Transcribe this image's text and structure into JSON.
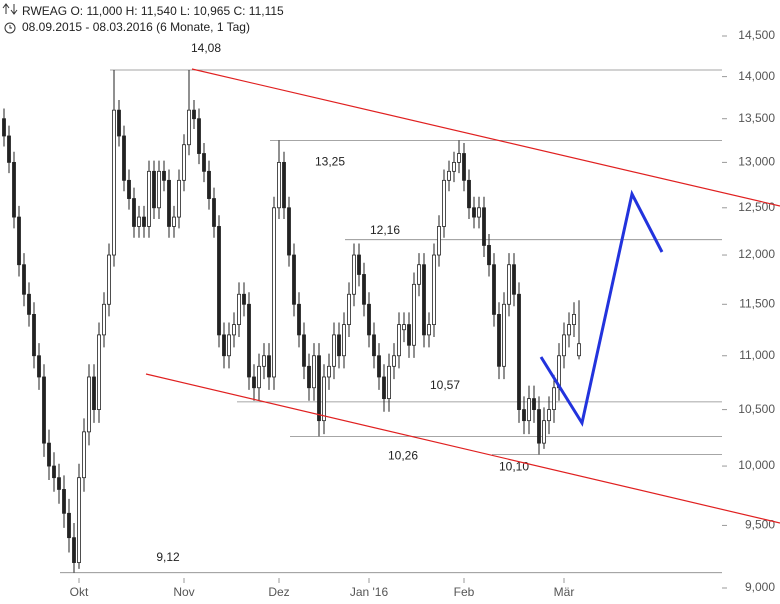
{
  "chart_data": {
    "type": "candlestick",
    "title": "RWEAG  O: 11,000  H: 11,540  L: 10,965  C: 11,115",
    "subtitle": "08.09.2015 - 08.03.2016 (6 Monate, 1 Tag)",
    "log_scale": true,
    "categories": [
      null,
      null,
      null,
      null,
      null,
      null,
      null,
      null,
      null,
      null,
      null,
      null,
      null,
      null,
      null,
      "Okt",
      null,
      null,
      null,
      null,
      null,
      null,
      null,
      null,
      null,
      null,
      null,
      null,
      null,
      null,
      null,
      null,
      null,
      null,
      null,
      null,
      "Nov",
      null,
      null,
      null,
      null,
      null,
      null,
      null,
      null,
      null,
      null,
      null,
      null,
      null,
      null,
      null,
      null,
      null,
      null,
      "Dez",
      null,
      null,
      null,
      null,
      null,
      null,
      null,
      null,
      null,
      null,
      null,
      null,
      null,
      null,
      null,
      null,
      null,
      "Jan '16",
      null,
      null,
      null,
      null,
      null,
      null,
      null,
      null,
      null,
      null,
      null,
      null,
      null,
      null,
      null,
      null,
      null,
      null,
      "Feb",
      null,
      null,
      null,
      null,
      null,
      null,
      null,
      null,
      null,
      null,
      null,
      null,
      null,
      null,
      null,
      null,
      null,
      null,
      null,
      "Mär",
      null,
      null,
      null
    ],
    "series": [
      {
        "name": "RWEAG",
        "color": "#222222",
        "open": [
          13.5,
          13.3,
          13.0,
          12.4,
          11.9,
          11.6,
          11.4,
          11.0,
          10.8,
          10.2,
          10.0,
          9.9,
          9.8,
          9.6,
          9.4,
          9.2,
          9.9,
          10.3,
          10.8,
          10.5,
          11.2,
          11.5,
          12.0,
          13.6,
          13.3,
          12.8,
          12.6,
          12.3,
          12.4,
          12.3,
          12.9,
          12.5,
          12.9,
          12.8,
          12.3,
          12.4,
          12.8,
          13.2,
          13.6,
          13.5,
          13.1,
          12.9,
          12.6,
          12.3,
          11.2,
          11.0,
          11.2,
          11.3,
          11.6,
          11.5,
          10.8,
          10.7,
          10.9,
          11.0,
          10.8,
          12.5,
          13.0,
          12.5,
          12.0,
          11.5,
          11.2,
          10.9,
          10.7,
          11.0,
          10.4,
          10.8,
          10.9,
          11.2,
          11.0,
          11.3,
          11.6,
          12.0,
          11.8,
          11.5,
          11.2,
          11.0,
          10.8,
          10.6,
          10.9,
          11.0,
          11.25,
          11.3,
          11.1,
          11.7,
          11.9,
          11.2,
          11.3,
          12.0,
          12.3,
          12.8,
          12.9,
          13.0,
          13.1,
          12.8,
          12.5,
          12.4,
          12.5,
          12.1,
          11.9,
          11.4,
          10.9,
          11.5,
          11.9,
          11.6,
          10.5,
          10.4,
          10.6,
          10.5,
          10.2,
          10.4,
          10.5,
          10.7,
          11.0,
          11.2,
          11.3,
          11.0
        ],
        "high": [
          13.62,
          13.42,
          13.12,
          12.52,
          12.02,
          11.72,
          11.52,
          11.12,
          10.92,
          10.32,
          10.12,
          10.02,
          9.92,
          9.72,
          9.52,
          10.02,
          10.42,
          10.92,
          10.92,
          11.32,
          11.62,
          12.12,
          14.08,
          13.72,
          13.42,
          12.92,
          12.72,
          12.52,
          12.52,
          13.02,
          13.02,
          13.02,
          13.02,
          12.92,
          12.52,
          12.92,
          13.32,
          14.08,
          13.72,
          13.62,
          13.22,
          13.02,
          12.72,
          12.42,
          11.32,
          11.32,
          11.42,
          11.72,
          11.72,
          11.62,
          10.92,
          11.02,
          11.12,
          11.12,
          12.62,
          13.25,
          13.12,
          12.62,
          12.12,
          11.62,
          11.32,
          11.02,
          11.12,
          11.12,
          10.92,
          11.02,
          11.32,
          11.32,
          11.42,
          11.72,
          12.12,
          12.12,
          11.92,
          11.62,
          11.32,
          11.12,
          10.92,
          11.02,
          11.12,
          11.42,
          11.42,
          11.42,
          11.82,
          12.02,
          12.02,
          11.42,
          12.12,
          12.42,
          12.92,
          13.02,
          13.12,
          13.25,
          13.22,
          12.92,
          12.62,
          12.62,
          12.62,
          12.22,
          12.02,
          11.52,
          11.62,
          12.02,
          12.02,
          11.72,
          10.62,
          10.72,
          10.72,
          10.62,
          10.52,
          10.62,
          10.82,
          11.12,
          11.32,
          11.42,
          11.52,
          11.54
        ],
        "low": [
          13.18,
          12.88,
          12.28,
          11.78,
          11.48,
          11.28,
          10.88,
          10.68,
          10.08,
          9.88,
          9.78,
          9.68,
          9.48,
          9.28,
          9.12,
          9.15,
          9.78,
          10.18,
          10.38,
          10.38,
          11.08,
          11.38,
          11.88,
          13.18,
          12.68,
          12.48,
          12.18,
          12.18,
          12.18,
          12.18,
          12.38,
          12.38,
          12.68,
          12.18,
          12.18,
          12.28,
          12.68,
          13.08,
          13.38,
          12.98,
          12.78,
          12.48,
          12.18,
          11.08,
          10.88,
          10.88,
          11.08,
          11.18,
          11.38,
          10.68,
          10.58,
          10.58,
          10.78,
          10.68,
          10.68,
          12.38,
          12.38,
          11.88,
          11.38,
          11.08,
          10.78,
          10.58,
          10.58,
          10.26,
          10.28,
          10.68,
          10.78,
          10.88,
          10.88,
          11.18,
          11.48,
          11.68,
          11.38,
          11.08,
          10.88,
          10.68,
          10.48,
          10.48,
          10.78,
          10.88,
          11.13,
          10.98,
          10.98,
          11.58,
          11.08,
          11.08,
          11.18,
          11.88,
          12.18,
          12.68,
          12.78,
          12.88,
          12.68,
          12.38,
          12.28,
          12.28,
          11.98,
          11.78,
          11.28,
          10.78,
          10.78,
          11.38,
          11.48,
          10.38,
          10.28,
          10.28,
          10.38,
          10.1,
          10.15,
          10.28,
          10.38,
          10.58,
          10.88,
          11.08,
          11.18,
          10.965
        ],
        "close": [
          13.3,
          13.0,
          12.4,
          11.9,
          11.6,
          11.4,
          11.0,
          10.8,
          10.2,
          10.0,
          9.9,
          9.8,
          9.6,
          9.4,
          9.2,
          9.9,
          10.3,
          10.8,
          10.5,
          11.2,
          11.5,
          12.0,
          13.6,
          13.3,
          12.8,
          12.6,
          12.3,
          12.4,
          12.3,
          12.9,
          12.5,
          12.9,
          12.8,
          12.3,
          12.4,
          12.8,
          13.2,
          13.6,
          13.5,
          13.1,
          12.9,
          12.6,
          12.3,
          11.2,
          11.0,
          11.2,
          11.3,
          11.6,
          11.5,
          10.8,
          10.7,
          10.9,
          11.0,
          10.8,
          12.5,
          13.0,
          12.5,
          12.0,
          11.5,
          11.2,
          10.9,
          10.7,
          11.0,
          10.4,
          10.8,
          10.9,
          11.2,
          11.0,
          11.3,
          11.6,
          12.0,
          11.8,
          11.5,
          11.2,
          11.0,
          10.8,
          10.6,
          10.9,
          11.0,
          11.3,
          11.3,
          11.1,
          11.7,
          11.9,
          11.2,
          11.3,
          12.0,
          12.3,
          12.8,
          12.9,
          13.0,
          13.1,
          12.8,
          12.5,
          12.4,
          12.5,
          12.1,
          11.9,
          11.4,
          10.9,
          11.5,
          11.9,
          11.6,
          10.5,
          10.4,
          10.6,
          10.5,
          10.2,
          10.4,
          10.5,
          10.7,
          11.0,
          11.2,
          11.3,
          11.4,
          11.115
        ]
      }
    ],
    "levels": [
      {
        "value": 14.08,
        "label": "14,08"
      },
      {
        "value": 13.25,
        "label": "13,25"
      },
      {
        "value": 12.16,
        "label": "12,16"
      },
      {
        "value": 10.57,
        "label": "10,57"
      },
      {
        "value": 10.26,
        "label": "10,26"
      },
      {
        "value": 10.1,
        "label": "10,10"
      },
      {
        "value": 9.12,
        "label": "9,12"
      }
    ],
    "ylim": [
      9,
      14.5
    ],
    "yticks": [
      {
        "value": 9,
        "label": "9,000"
      },
      {
        "value": 9.5,
        "label": "9,500"
      },
      {
        "value": 10,
        "label": "10,000"
      },
      {
        "value": 10.5,
        "label": "10,500"
      },
      {
        "value": 11,
        "label": "11,000"
      },
      {
        "value": 11.5,
        "label": "11,500"
      },
      {
        "value": 12,
        "label": "12,000"
      },
      {
        "value": 12.5,
        "label": "12,500"
      },
      {
        "value": 13,
        "label": "13,000"
      },
      {
        "value": 13.5,
        "label": "13,500"
      },
      {
        "value": 14,
        "label": "14,000"
      },
      {
        "value": 14.5,
        "label": "14,500"
      }
    ]
  }
}
